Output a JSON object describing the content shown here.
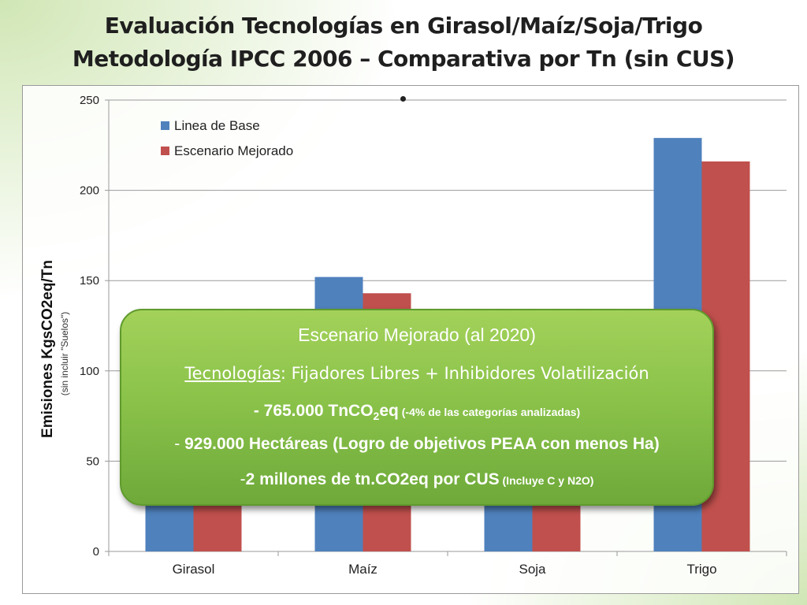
{
  "slide": {
    "title_line1": "Evaluación Tecnologías en Girasol/Maíz/Soja/Trigo",
    "title_line2": "Metodología IPCC 2006 – Comparativa por Tn (sin CUS)"
  },
  "callout": {
    "title": "Escenario Mejorado (al 2020)",
    "tech_label": "Tecnologías",
    "tech_text": ":  Fijadores Libres + Inhibidores Volatilización",
    "line3_main": "- 765.000 TnCO",
    "line3_sub": "2",
    "line3_after": "eq",
    "line3_small": " (-4% de las categorías analizadas)",
    "line4_dash": "- ",
    "line4_text": "929.000 Hectáreas (Logro de objetivos PEAA con menos Ha)",
    "line5_dash": "-",
    "line5_text": "2 millones de tn.CO2eq por CUS",
    "line5_small": " (Incluye C y N2O)"
  },
  "chart_data": {
    "type": "bar",
    "categories": [
      "Girasol",
      "Maíz",
      "Soja",
      "Trigo"
    ],
    "series": [
      {
        "name": "Linea de Base",
        "values": [
          55,
          152,
          60,
          229
        ],
        "color": "#4f81bd"
      },
      {
        "name": "Escenario Mejorado",
        "values": [
          52,
          143,
          57,
          216
        ],
        "color": "#c0504d"
      }
    ],
    "ylabel": "Emisiones KgsCO2eq/Tn",
    "ylabel_sub": "(sin incluir \"Suelos\")",
    "ylim": [
      0,
      250
    ],
    "yticks": [
      0,
      50,
      100,
      150,
      200,
      250
    ],
    "grid": true,
    "legend_position": "top-left"
  }
}
